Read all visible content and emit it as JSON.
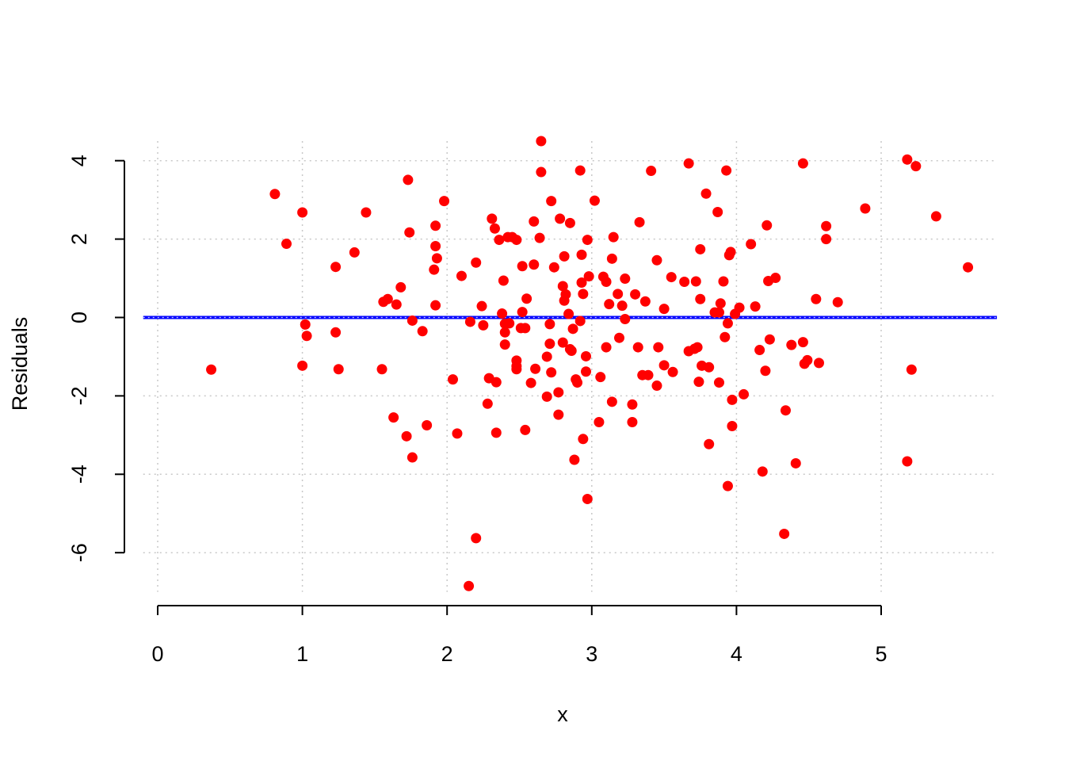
{
  "chart_data": {
    "type": "scatter",
    "title": "",
    "xlabel": "x",
    "ylabel": "Residuals",
    "xlim": [
      -0.1,
      5.8
    ],
    "ylim": [
      -7.0,
      4.5
    ],
    "xticks": [
      0,
      1,
      2,
      3,
      4,
      5
    ],
    "yticks": [
      -6,
      -4,
      -2,
      0,
      2,
      4
    ],
    "grid": true,
    "reference_line": {
      "y": 0,
      "color": "#0000ff"
    },
    "colors": {
      "points": "#ff0000",
      "reference_line": "#0000ff",
      "grid": "#c8c8c8",
      "axis": "#000000"
    },
    "points": [
      [
        0.37,
        -1.33
      ],
      [
        0.81,
        3.15
      ],
      [
        0.89,
        1.88
      ],
      [
        1.0,
        2.68
      ],
      [
        1.0,
        -1.23
      ],
      [
        1.02,
        -0.18
      ],
      [
        1.03,
        -0.47
      ],
      [
        1.23,
        1.29
      ],
      [
        1.23,
        -0.38
      ],
      [
        1.25,
        -1.32
      ],
      [
        1.36,
        1.66
      ],
      [
        1.44,
        2.68
      ],
      [
        1.55,
        -1.32
      ],
      [
        1.56,
        0.4
      ],
      [
        1.59,
        0.47
      ],
      [
        1.63,
        -2.55
      ],
      [
        1.65,
        0.33
      ],
      [
        1.68,
        0.77
      ],
      [
        1.72,
        -3.03
      ],
      [
        1.73,
        3.51
      ],
      [
        1.74,
        2.17
      ],
      [
        1.76,
        -3.57
      ],
      [
        1.76,
        -0.08
      ],
      [
        1.83,
        -0.35
      ],
      [
        1.86,
        -2.75
      ],
      [
        1.91,
        1.22
      ],
      [
        1.92,
        0.31
      ],
      [
        1.92,
        1.82
      ],
      [
        1.92,
        2.34
      ],
      [
        1.93,
        1.51
      ],
      [
        1.98,
        2.97
      ],
      [
        2.04,
        -1.58
      ],
      [
        2.07,
        -2.96
      ],
      [
        2.1,
        1.06
      ],
      [
        2.15,
        -6.85
      ],
      [
        2.16,
        -0.11
      ],
      [
        2.2,
        1.4
      ],
      [
        2.2,
        -5.63
      ],
      [
        2.24,
        0.29
      ],
      [
        2.25,
        -0.2
      ],
      [
        2.28,
        -2.2
      ],
      [
        2.29,
        -1.55
      ],
      [
        2.31,
        2.52
      ],
      [
        2.33,
        2.27
      ],
      [
        2.34,
        -1.65
      ],
      [
        2.34,
        -2.94
      ],
      [
        2.36,
        1.98
      ],
      [
        2.38,
        0.1
      ],
      [
        2.39,
        0.94
      ],
      [
        2.4,
        -0.16
      ],
      [
        2.4,
        -0.38
      ],
      [
        2.4,
        -0.69
      ],
      [
        2.42,
        2.05
      ],
      [
        2.43,
        -0.15
      ],
      [
        2.45,
        2.05
      ],
      [
        2.48,
        1.98
      ],
      [
        2.48,
        -1.1
      ],
      [
        2.48,
        -1.32
      ],
      [
        2.48,
        -1.24
      ],
      [
        2.51,
        -0.27
      ],
      [
        2.52,
        0.14
      ],
      [
        2.52,
        1.31
      ],
      [
        2.54,
        -0.27
      ],
      [
        2.54,
        -2.87
      ],
      [
        2.55,
        0.48
      ],
      [
        2.58,
        -1.67
      ],
      [
        2.6,
        1.35
      ],
      [
        2.6,
        2.45
      ],
      [
        2.61,
        -1.31
      ],
      [
        2.64,
        2.03
      ],
      [
        2.65,
        4.5
      ],
      [
        2.65,
        3.71
      ],
      [
        2.69,
        -2.02
      ],
      [
        2.69,
        -1.0
      ],
      [
        2.71,
        -0.17
      ],
      [
        2.71,
        -0.67
      ],
      [
        2.72,
        -1.4
      ],
      [
        2.72,
        2.97
      ],
      [
        2.74,
        1.28
      ],
      [
        2.77,
        -2.48
      ],
      [
        2.77,
        -1.91
      ],
      [
        2.78,
        2.52
      ],
      [
        2.8,
        -0.64
      ],
      [
        2.8,
        0.8
      ],
      [
        2.81,
        0.43
      ],
      [
        2.81,
        1.56
      ],
      [
        2.82,
        0.59
      ],
      [
        2.84,
        0.09
      ],
      [
        2.85,
        -0.81
      ],
      [
        2.85,
        2.41
      ],
      [
        2.86,
        -0.85
      ],
      [
        2.87,
        -0.29
      ],
      [
        2.88,
        -3.63
      ],
      [
        2.89,
        -1.58
      ],
      [
        2.9,
        -1.66
      ],
      [
        2.92,
        3.75
      ],
      [
        2.92,
        -0.09
      ],
      [
        2.93,
        0.89
      ],
      [
        2.93,
        1.6
      ],
      [
        2.94,
        -3.1
      ],
      [
        2.94,
        0.6
      ],
      [
        2.96,
        -1.38
      ],
      [
        2.96,
        -0.99
      ],
      [
        2.97,
        -4.63
      ],
      [
        2.97,
        1.98
      ],
      [
        2.98,
        1.05
      ],
      [
        3.02,
        2.98
      ],
      [
        3.05,
        -2.67
      ],
      [
        3.06,
        -1.52
      ],
      [
        3.08,
        1.04
      ],
      [
        3.1,
        0.91
      ],
      [
        3.1,
        -0.76
      ],
      [
        3.12,
        0.34
      ],
      [
        3.14,
        -2.15
      ],
      [
        3.14,
        1.5
      ],
      [
        3.15,
        2.05
      ],
      [
        3.18,
        0.6
      ],
      [
        3.19,
        -0.52
      ],
      [
        3.21,
        0.3
      ],
      [
        3.23,
        0.99
      ],
      [
        3.23,
        -0.04
      ],
      [
        3.28,
        -2.22
      ],
      [
        3.28,
        -2.67
      ],
      [
        3.3,
        0.59
      ],
      [
        3.32,
        -0.76
      ],
      [
        3.33,
        2.43
      ],
      [
        3.35,
        -1.47
      ],
      [
        3.37,
        0.41
      ],
      [
        3.39,
        -1.47
      ],
      [
        3.41,
        3.74
      ],
      [
        3.45,
        -1.74
      ],
      [
        3.45,
        1.46
      ],
      [
        3.46,
        -0.76
      ],
      [
        3.5,
        0.22
      ],
      [
        3.5,
        -1.22
      ],
      [
        3.55,
        1.03
      ],
      [
        3.56,
        -1.39
      ],
      [
        3.64,
        0.91
      ],
      [
        3.67,
        3.93
      ],
      [
        3.67,
        -0.86
      ],
      [
        3.71,
        -0.8
      ],
      [
        3.72,
        0.92
      ],
      [
        3.73,
        -0.76
      ],
      [
        3.74,
        -1.64
      ],
      [
        3.75,
        1.74
      ],
      [
        3.75,
        0.47
      ],
      [
        3.76,
        -1.23
      ],
      [
        3.79,
        3.16
      ],
      [
        3.81,
        -3.23
      ],
      [
        3.81,
        -1.27
      ],
      [
        3.85,
        0.13
      ],
      [
        3.87,
        2.69
      ],
      [
        3.88,
        0.13
      ],
      [
        3.88,
        -1.66
      ],
      [
        3.89,
        0.36
      ],
      [
        3.91,
        0.92
      ],
      [
        3.92,
        -0.5
      ],
      [
        3.93,
        3.75
      ],
      [
        3.94,
        -4.3
      ],
      [
        3.94,
        -0.15
      ],
      [
        3.95,
        1.59
      ],
      [
        3.96,
        1.67
      ],
      [
        3.97,
        -2.77
      ],
      [
        3.97,
        -2.1
      ],
      [
        3.99,
        0.09
      ],
      [
        4.02,
        0.25
      ],
      [
        4.05,
        -1.96
      ],
      [
        4.1,
        1.87
      ],
      [
        4.13,
        0.28
      ],
      [
        4.16,
        -0.83
      ],
      [
        4.18,
        -3.93
      ],
      [
        4.2,
        -1.36
      ],
      [
        4.21,
        2.35
      ],
      [
        4.22,
        0.93
      ],
      [
        4.23,
        -0.56
      ],
      [
        4.27,
        1.01
      ],
      [
        4.33,
        -5.52
      ],
      [
        4.34,
        -2.37
      ],
      [
        4.38,
        -0.7
      ],
      [
        4.41,
        -3.72
      ],
      [
        4.46,
        3.93
      ],
      [
        4.46,
        -0.63
      ],
      [
        4.47,
        -1.18
      ],
      [
        4.49,
        -1.09
      ],
      [
        4.55,
        0.47
      ],
      [
        4.57,
        -1.16
      ],
      [
        4.62,
        2.0
      ],
      [
        4.62,
        2.33
      ],
      [
        4.7,
        0.39
      ],
      [
        4.89,
        2.78
      ],
      [
        5.18,
        4.03
      ],
      [
        5.18,
        -3.67
      ],
      [
        5.21,
        -1.33
      ],
      [
        5.24,
        3.86
      ],
      [
        5.38,
        2.58
      ],
      [
        5.6,
        1.28
      ]
    ]
  }
}
